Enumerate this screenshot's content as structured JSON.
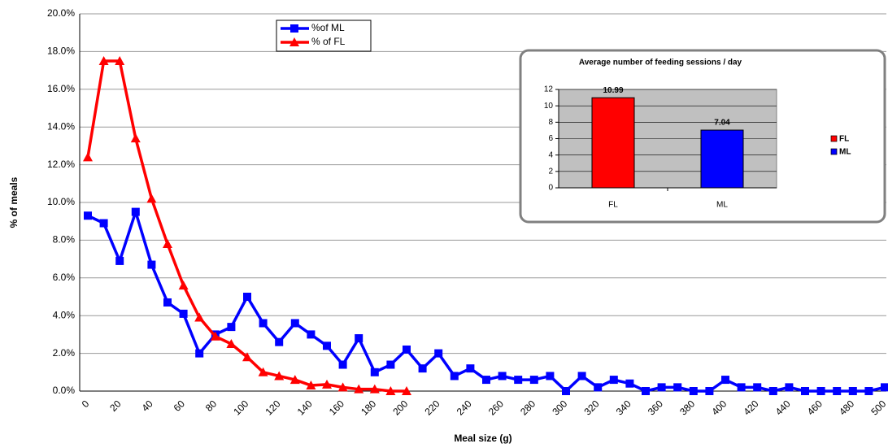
{
  "chart_data": [
    {
      "type": "line",
      "x_label": "Meal size (g)",
      "y_label": "% of meals",
      "categories": [
        "0",
        null,
        "20",
        null,
        "40",
        null,
        "60",
        null,
        "80",
        null,
        "100",
        null,
        "120",
        null,
        "140",
        null,
        "160",
        null,
        "180",
        null,
        "200",
        null,
        "220",
        null,
        "240",
        null,
        "260",
        null,
        "280",
        null,
        "300",
        null,
        "320",
        null,
        "340",
        null,
        "360",
        null,
        "380",
        null,
        "400",
        null,
        "420",
        null,
        "440",
        null,
        "460",
        null,
        "480",
        null,
        "500"
      ],
      "series": [
        {
          "name": "%of ML",
          "color": "#0000ff",
          "marker": "square",
          "values": [
            9.3,
            8.9,
            6.9,
            9.5,
            6.7,
            4.7,
            4.1,
            2.0,
            3.0,
            3.4,
            5.0,
            3.6,
            2.6,
            3.6,
            3.0,
            2.4,
            1.4,
            2.8,
            1.0,
            1.4,
            2.2,
            1.2,
            2.0,
            0.8,
            1.2,
            0.6,
            0.8,
            0.6,
            0.6,
            0.8,
            0,
            0.8,
            0.2,
            0.6,
            0.4,
            0,
            0.2,
            0.2,
            0,
            0,
            0.6,
            0.2,
            0.2,
            0,
            0.2,
            0,
            0,
            0,
            0,
            0,
            0.2
          ]
        },
        {
          "name": "% of FL",
          "color": "#ff0000",
          "marker": "triangle",
          "values": [
            12.4,
            17.5,
            17.5,
            13.4,
            10.2,
            7.8,
            5.6,
            3.9,
            2.9,
            2.5,
            1.8,
            1.0,
            0.8,
            0.6,
            0.3,
            0.35,
            0.2,
            0.1,
            0.1,
            0,
            0,
            null,
            null,
            null,
            null,
            null,
            null,
            null,
            null,
            null,
            null,
            null,
            null,
            null,
            null,
            null,
            null,
            null,
            null,
            null,
            null,
            null,
            null,
            null,
            null,
            null,
            null,
            null,
            null,
            null,
            null
          ]
        }
      ],
      "ylim": [
        0,
        20
      ],
      "yticks": [
        {
          "value": 0,
          "label": "0.0%"
        },
        {
          "value": 2,
          "label": "2.0%"
        },
        {
          "value": 4,
          "label": "4.0%"
        },
        {
          "value": 6,
          "label": "6.0%"
        },
        {
          "value": 8,
          "label": "8.0%"
        },
        {
          "value": 10,
          "label": "10.0%"
        },
        {
          "value": 12,
          "label": "12.0%"
        },
        {
          "value": 14,
          "label": "14.0%"
        },
        {
          "value": 16,
          "label": "16.0%"
        },
        {
          "value": 18,
          "label": "18.0%"
        },
        {
          "value": 20,
          "label": "20.0%"
        }
      ],
      "grid": true,
      "legend": "top"
    },
    {
      "type": "bar",
      "title": "Average number of feeding sessions / day",
      "categories": [
        "FL",
        "ML"
      ],
      "values": [
        10.99,
        7.04
      ],
      "colors": [
        "#ff0000",
        "#0000ff"
      ],
      "ylim": [
        0,
        12
      ],
      "yticks": [
        0,
        2,
        4,
        6,
        8,
        10,
        12
      ],
      "grid": true,
      "legend": "right"
    }
  ]
}
